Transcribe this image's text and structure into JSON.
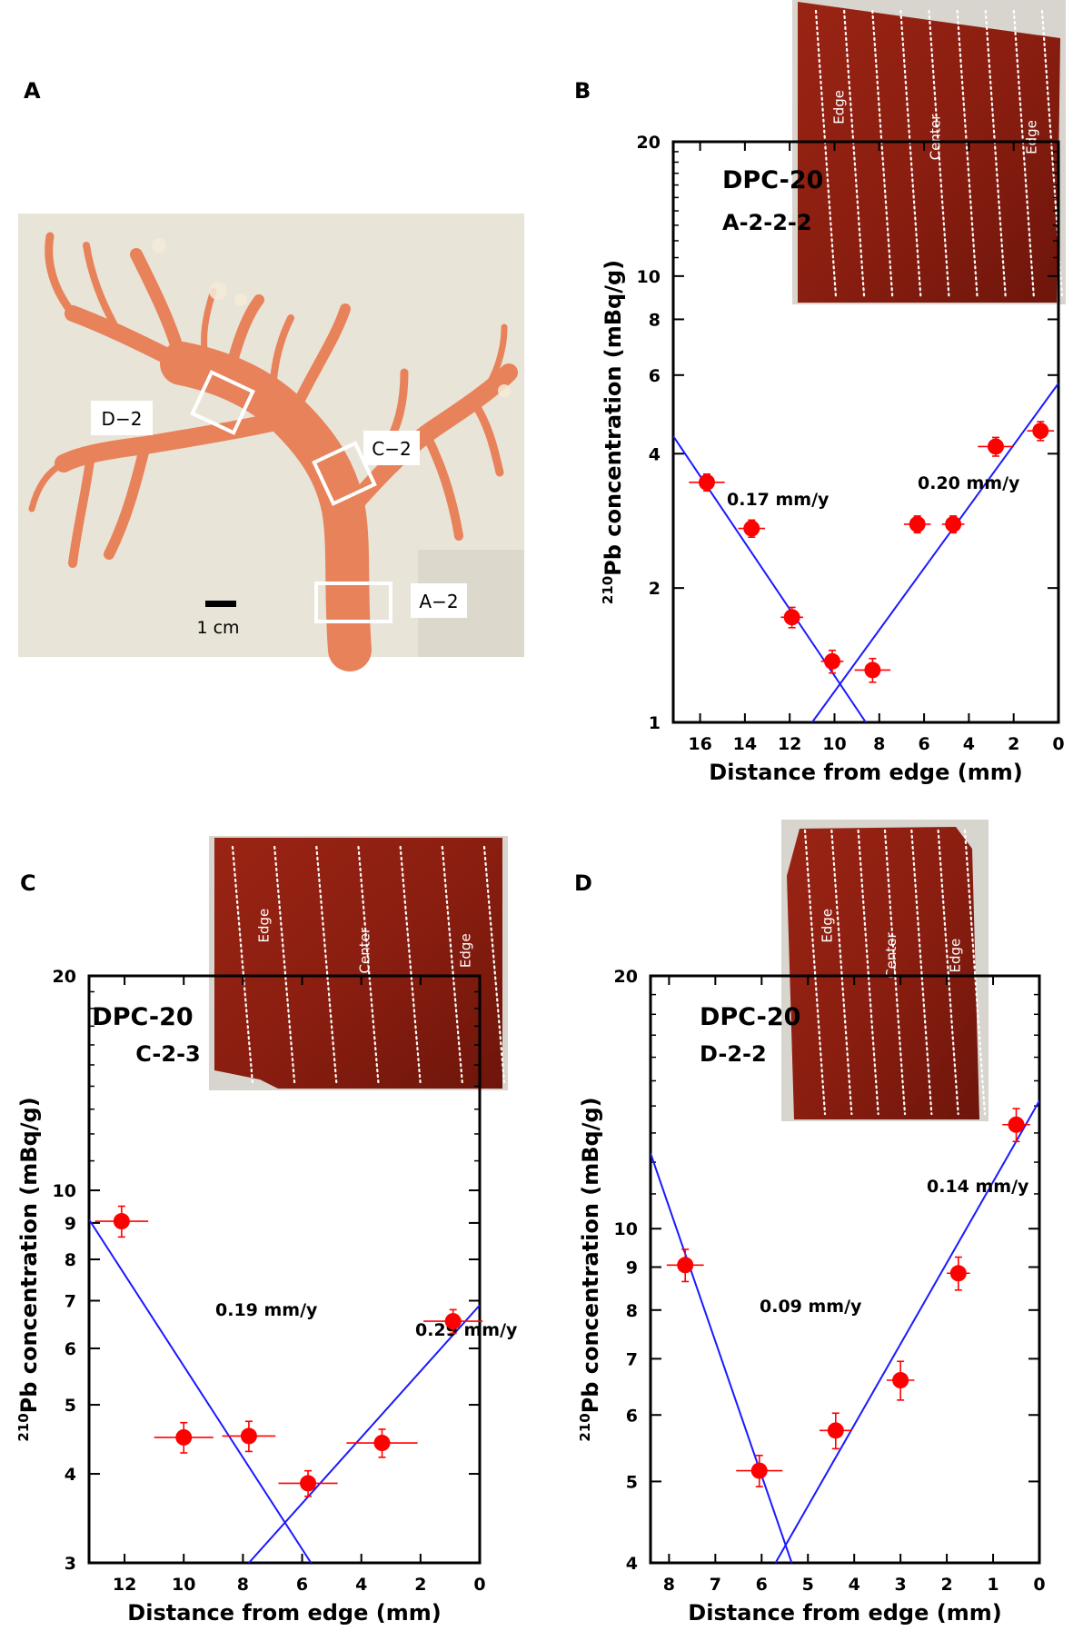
{
  "panels": {
    "A": {
      "letter": "A",
      "region_labels": [
        "D−2",
        "C−2",
        "A−2"
      ],
      "scale_label": "1 cm"
    }
  },
  "colors": {
    "point": "#ff0000",
    "error_bar": "#ff0000",
    "fit_line": "#1a1aff",
    "axis": "#000000",
    "coral": "#e8825a",
    "slab": "#8b1e12"
  },
  "slab_labels": {
    "edge": "Edge",
    "center": "Center"
  },
  "chart_data": [
    {
      "panel": "B",
      "type": "scatter",
      "sample_title": [
        "DPC-20",
        "A-2-2-2"
      ],
      "xlabel": "Distance from edge (mm)",
      "ylabel_superscript": "210",
      "ylabel": "Pb concentration (mBq/g)",
      "y_scale": "log",
      "x_reversed": true,
      "xlim": [
        17.2,
        0
      ],
      "ylim": [
        1,
        20
      ],
      "x_ticks": [
        16,
        14,
        12,
        10,
        8,
        6,
        4,
        2,
        0
      ],
      "y_ticks": [
        1,
        2,
        4,
        6,
        8,
        10,
        20
      ],
      "y_tick_labels": [
        "1",
        "2",
        "4",
        "6",
        "8",
        "10",
        "20"
      ],
      "points": [
        {
          "x": 15.7,
          "y": 3.45,
          "xerr": 0.8,
          "yerr": 0.15
        },
        {
          "x": 13.7,
          "y": 2.72,
          "xerr": 0.6,
          "yerr": 0.12
        },
        {
          "x": 11.9,
          "y": 1.72,
          "xerr": 0.5,
          "yerr": 0.09
        },
        {
          "x": 10.1,
          "y": 1.37,
          "xerr": 0.5,
          "yerr": 0.08
        },
        {
          "x": 8.3,
          "y": 1.31,
          "xerr": 0.8,
          "yerr": 0.08
        },
        {
          "x": 6.3,
          "y": 2.78,
          "xerr": 0.6,
          "yerr": 0.12
        },
        {
          "x": 4.7,
          "y": 2.78,
          "xerr": 0.5,
          "yerr": 0.12
        },
        {
          "x": 2.8,
          "y": 4.15,
          "xerr": 0.8,
          "yerr": 0.2
        },
        {
          "x": 0.8,
          "y": 4.5,
          "xerr": 0.6,
          "yerr": 0.22
        }
      ],
      "fit_lines": [
        {
          "x": [
            17.2,
            8.6
          ],
          "y": [
            4.38,
            1
          ]
        },
        {
          "x": [
            11.0,
            0
          ],
          "y": [
            1,
            5.75
          ]
        }
      ],
      "annotations": [
        "0.17 mm/y",
        "0.20 mm/y"
      ],
      "inset_stripes": 9
    },
    {
      "panel": "C",
      "type": "scatter",
      "sample_title": [
        "DPC-20",
        "C-2-3"
      ],
      "xlabel": "Distance from edge (mm)",
      "ylabel_superscript": "210",
      "ylabel": "Pb concentration (mBq/g)",
      "y_scale": "log",
      "x_reversed": true,
      "xlim": [
        13.2,
        0
      ],
      "ylim": [
        3,
        20
      ],
      "x_ticks": [
        12,
        10,
        8,
        6,
        4,
        2,
        0
      ],
      "y_ticks": [
        3,
        4,
        5,
        6,
        7,
        8,
        9,
        10,
        20
      ],
      "y_tick_labels": [
        "3",
        "4",
        "5",
        "6",
        "7",
        "8",
        "9",
        "10",
        "20"
      ],
      "points": [
        {
          "x": 12.1,
          "y": 9.05,
          "xerr": 0.9,
          "yerr": 0.45
        },
        {
          "x": 10.0,
          "y": 4.5,
          "xerr": 1.0,
          "yerr": 0.22
        },
        {
          "x": 7.8,
          "y": 4.52,
          "xerr": 0.9,
          "yerr": 0.22
        },
        {
          "x": 5.8,
          "y": 3.88,
          "xerr": 1.0,
          "yerr": 0.16
        },
        {
          "x": 3.3,
          "y": 4.42,
          "xerr": 1.2,
          "yerr": 0.2
        },
        {
          "x": 0.9,
          "y": 6.55,
          "xerr": 1.0,
          "yerr": 0.25
        }
      ],
      "fit_lines": [
        {
          "x": [
            13.2,
            5.7
          ],
          "y": [
            9.1,
            3
          ]
        },
        {
          "x": [
            7.8,
            0
          ],
          "y": [
            3,
            6.9
          ]
        }
      ],
      "annotations": [
        "0.19 mm/y",
        "0.29 mm/y"
      ],
      "inset_stripes": 7
    },
    {
      "panel": "D",
      "type": "scatter",
      "sample_title": [
        "DPC-20",
        "D-2-2"
      ],
      "xlabel": "Distance from edge (mm)",
      "ylabel_superscript": "210",
      "ylabel": "Pb concentration (mBq/g)",
      "y_scale": "log",
      "x_reversed": true,
      "xlim": [
        8.4,
        0
      ],
      "ylim": [
        4,
        20
      ],
      "x_ticks": [
        8,
        7,
        6,
        5,
        4,
        3,
        2,
        1,
        0
      ],
      "y_ticks": [
        4,
        5,
        6,
        7,
        8,
        9,
        10,
        20
      ],
      "y_tick_labels": [
        "4",
        "5",
        "6",
        "7",
        "8",
        "9",
        "10",
        "20"
      ],
      "points": [
        {
          "x": 7.65,
          "y": 9.05,
          "xerr": 0.4,
          "yerr": 0.4
        },
        {
          "x": 6.05,
          "y": 5.15,
          "xerr": 0.5,
          "yerr": 0.22
        },
        {
          "x": 4.4,
          "y": 5.75,
          "xerr": 0.35,
          "yerr": 0.28
        },
        {
          "x": 3.0,
          "y": 6.6,
          "xerr": 0.3,
          "yerr": 0.35
        },
        {
          "x": 1.75,
          "y": 8.85,
          "xerr": 0.25,
          "yerr": 0.4
        },
        {
          "x": 0.5,
          "y": 13.3,
          "xerr": 0.3,
          "yerr": 0.6
        }
      ],
      "fit_lines": [
        {
          "x": [
            8.4,
            5.35
          ],
          "y": [
            12.3,
            4
          ]
        },
        {
          "x": [
            5.7,
            0
          ],
          "y": [
            4,
            14.2
          ]
        }
      ],
      "annotations": [
        "0.09 mm/y",
        "0.14 mm/y"
      ],
      "inset_stripes": 7
    }
  ]
}
